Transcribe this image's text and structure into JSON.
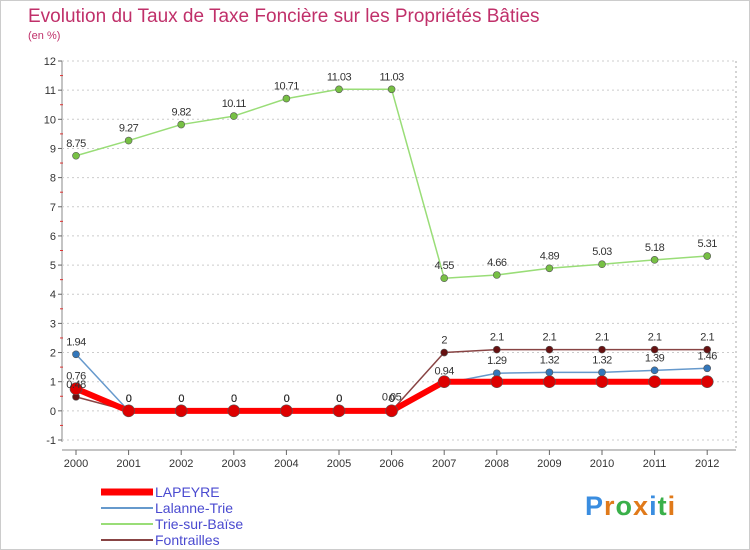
{
  "title": "Evolution du Taux de Taxe Foncière sur les Propriétés Bâties",
  "subtitle": "(en %)",
  "logo": {
    "text": "Proxiti",
    "letters": [
      "P",
      "r",
      "o",
      "x",
      "i",
      "t",
      "i"
    ],
    "colors": [
      "#3a8de0",
      "#e07a1a",
      "#3ab04a",
      "#e07a1a",
      "#3a8de0",
      "#3ab04a",
      "#e07a1a"
    ]
  },
  "chart_data": {
    "type": "line",
    "title": "Evolution du Taux de Taxe Foncière sur les Propriétés Bâties",
    "ylabel": "(en %)",
    "xlabel": "",
    "ylim": [
      -1,
      12
    ],
    "yticks": [
      "-1",
      "0",
      "1",
      "2",
      "3",
      "4",
      "5",
      "6",
      "7",
      "8",
      "9",
      "10",
      "11",
      "12"
    ],
    "categories": [
      "2000",
      "2001",
      "2002",
      "2003",
      "2004",
      "2005",
      "2006",
      "2007",
      "2008",
      "2009",
      "2010",
      "2011",
      "2012"
    ],
    "series": [
      {
        "name": "Trie-sur-Baïse",
        "color": "#99dd77",
        "point": "#77c044",
        "width": 1.5,
        "r": 3.5,
        "values": [
          8.75,
          9.27,
          9.82,
          10.11,
          10.71,
          11.03,
          11.03,
          4.55,
          4.66,
          4.89,
          5.03,
          5.18,
          5.31
        ],
        "labels": [
          "8.75",
          "9.27",
          "9.82",
          "10.11",
          "10.71",
          "11.03",
          "11.03",
          "4.55",
          "4.66",
          "4.89",
          "5.03",
          "5.18",
          "5.31"
        ]
      },
      {
        "name": "Fontrailles",
        "color": "#884444",
        "point": "#661111",
        "width": 1.5,
        "r": 3.5,
        "values": [
          0.48,
          0,
          0,
          0,
          0,
          0,
          0,
          2,
          2.1,
          2.1,
          2.1,
          2.1,
          2.1
        ],
        "labels": [
          "0.48",
          "0",
          "0",
          "0",
          "0",
          "0",
          "0",
          "2",
          "2.1",
          "2.1",
          "2.1",
          "2.1",
          "2.1"
        ]
      },
      {
        "name": "Lalanne-Trie",
        "color": "#6699cc",
        "point": "#3377bb",
        "width": 1.5,
        "r": 3.5,
        "values": [
          1.94,
          0,
          0,
          0,
          0,
          0,
          0.05,
          0.94,
          1.29,
          1.32,
          1.32,
          1.39,
          1.46
        ],
        "labels": [
          "1.94",
          "0",
          "0",
          "0",
          "0",
          "0",
          "0.05",
          "0.94",
          "1.29",
          "1.32",
          "1.32",
          "1.39",
          "1.46"
        ]
      },
      {
        "name": "LAPEYRE",
        "color": "#ff0000",
        "point": "#dd0000",
        "width": 6,
        "r": 6,
        "values": [
          0.76,
          0,
          0,
          0,
          0,
          0,
          0,
          1,
          1,
          1,
          1,
          1,
          1
        ],
        "labels": [
          "0.76",
          "0",
          "0",
          "0",
          "0",
          "0",
          "0",
          "",
          "",
          "",
          "",
          "",
          ""
        ]
      }
    ],
    "legend": [
      "LAPEYRE",
      "Lalanne-Trie",
      "Trie-sur-Baïse",
      "Fontrailles"
    ],
    "legend_position": "bottom-left"
  }
}
